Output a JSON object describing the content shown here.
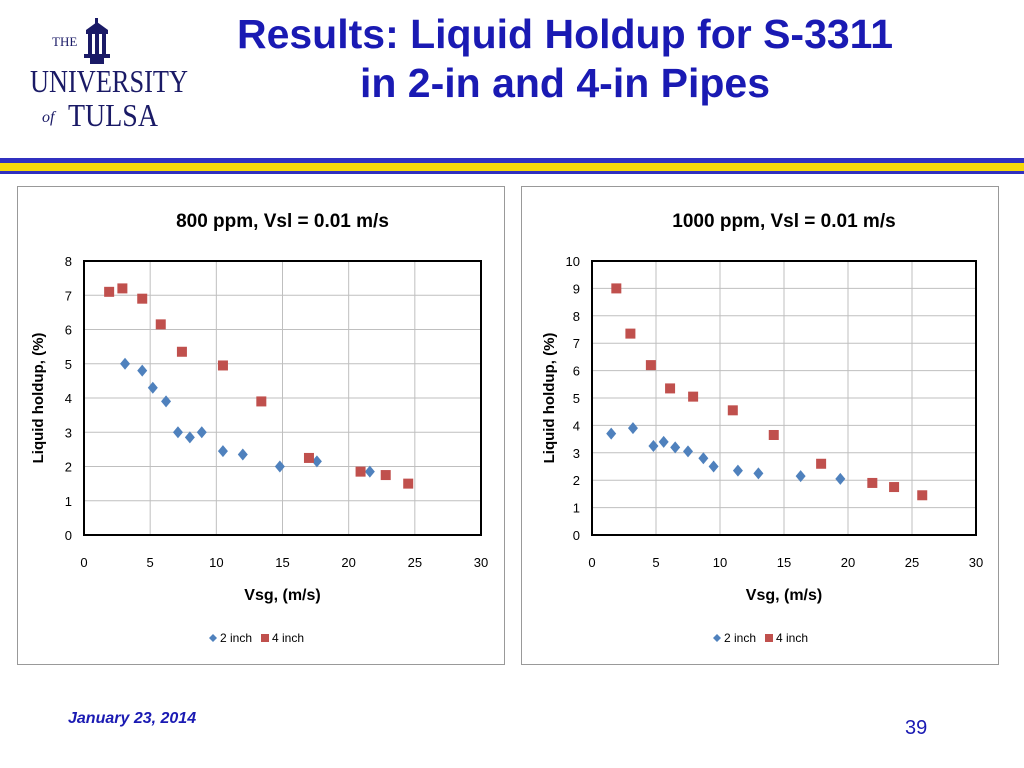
{
  "slide": {
    "title_line1": "Results: Liquid Holdup for S-3311",
    "title_line2": "in 2-in and 4-in Pipes",
    "footer_date": "January 23, 2014",
    "page_number": "39"
  },
  "logo": {
    "the": "THE",
    "university": "UNIVERSITY",
    "of": "of",
    "tulsa": "TULSA"
  },
  "colors": {
    "title": "#1a1ab3",
    "series_2inch": "#4f81bd",
    "series_4inch": "#c0504d",
    "rule_blue": "#3030c0",
    "rule_gold": "#f5d90a"
  },
  "chart_data": [
    {
      "type": "scatter",
      "title": "800 ppm, Vsl = 0.01 m/s",
      "xlabel": "Vsg, (m/s)",
      "ylabel": "Liquid holdup, (%)",
      "xlim": [
        0,
        30
      ],
      "ylim": [
        0,
        8
      ],
      "xticks": [
        0,
        5,
        10,
        15,
        20,
        25,
        30
      ],
      "yticks": [
        0,
        1,
        2,
        3,
        4,
        5,
        6,
        7,
        8
      ],
      "grid": true,
      "legend_position": "bottom",
      "series": [
        {
          "name": "2 inch",
          "marker": "diamond",
          "color": "#4f81bd",
          "x": [
            3.1,
            4.4,
            5.2,
            6.2,
            7.1,
            8.0,
            8.9,
            10.5,
            12.0,
            14.8,
            17.6,
            21.6
          ],
          "y": [
            5.0,
            4.8,
            4.3,
            3.9,
            3.0,
            2.85,
            3.0,
            2.45,
            2.35,
            2.0,
            2.15,
            1.85
          ]
        },
        {
          "name": "4 inch",
          "marker": "square",
          "color": "#c0504d",
          "x": [
            1.9,
            2.9,
            4.4,
            5.8,
            7.4,
            10.5,
            13.4,
            17.0,
            20.9,
            22.8,
            24.5
          ],
          "y": [
            7.1,
            7.2,
            6.9,
            6.15,
            5.35,
            4.95,
            3.9,
            2.25,
            1.85,
            1.75,
            1.5
          ]
        }
      ]
    },
    {
      "type": "scatter",
      "title": "1000 ppm, Vsl = 0.01 m/s",
      "xlabel": "Vsg, (m/s)",
      "ylabel": "Liquid holdup, (%)",
      "xlim": [
        0,
        30
      ],
      "ylim": [
        0,
        10
      ],
      "xticks": [
        0,
        5,
        10,
        15,
        20,
        25,
        30
      ],
      "yticks": [
        0,
        1,
        2,
        3,
        4,
        5,
        6,
        7,
        8,
        9,
        10
      ],
      "grid": true,
      "legend_position": "bottom",
      "series": [
        {
          "name": "2 inch",
          "marker": "diamond",
          "color": "#4f81bd",
          "x": [
            1.5,
            3.2,
            4.8,
            5.6,
            6.5,
            7.5,
            8.7,
            9.5,
            11.4,
            13.0,
            16.3,
            19.4
          ],
          "y": [
            3.7,
            3.9,
            3.25,
            3.4,
            3.2,
            3.05,
            2.8,
            2.5,
            2.35,
            2.25,
            2.15,
            2.05
          ]
        },
        {
          "name": "4 inch",
          "marker": "square",
          "color": "#c0504d",
          "x": [
            1.9,
            3.0,
            4.6,
            6.1,
            7.9,
            11.0,
            14.2,
            17.9,
            21.9,
            23.6,
            25.8
          ],
          "y": [
            9.0,
            7.35,
            6.2,
            5.35,
            5.05,
            4.55,
            3.65,
            2.6,
            1.9,
            1.75,
            1.45
          ]
        }
      ]
    }
  ]
}
